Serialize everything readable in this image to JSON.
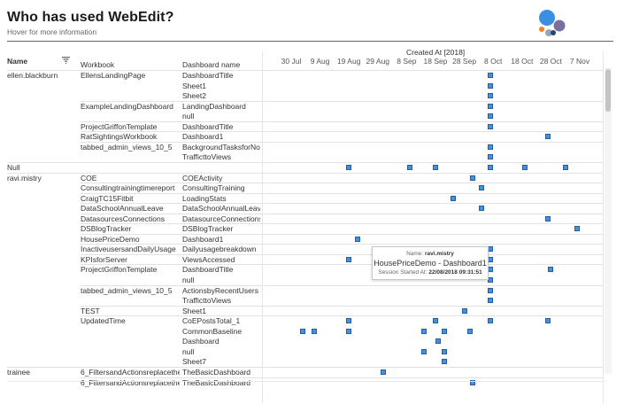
{
  "header": {
    "title": "Who has used WebEdit?",
    "subtitle": "Hover for more information"
  },
  "colors": {
    "mark_fill": "#4a8fd8",
    "mark_border": "#1e5fa8",
    "logo_blue": "#3a8fe0",
    "logo_orange": "#f58220",
    "logo_navy": "#1e4a7a",
    "logo_purple": "#7a6fa0",
    "logo_gray": "#9aa5b1"
  },
  "columns": {
    "name": "Name",
    "workbook": "Workbook",
    "dashboard": "Dashboard name",
    "axis_title": "Created At [2018]"
  },
  "axis_ticks": [
    "30 Jul",
    "9 Aug",
    "19 Aug",
    "29 Aug",
    "8 Sep",
    "18 Sep",
    "28 Sep",
    "8 Oct",
    "18 Oct",
    "28 Oct",
    "7 Nov"
  ],
  "rows": [
    {
      "name": "ellen.blackburn",
      "workbook": "EllensLandingPage",
      "dashboard": "DashboardTitle",
      "marks": [
        "2018-10-07"
      ]
    },
    {
      "name": "",
      "workbook": "",
      "dashboard": "Sheet1",
      "marks": [
        "2018-10-07"
      ]
    },
    {
      "name": "",
      "workbook": "",
      "dashboard": "Sheet2",
      "marks": [
        "2018-10-07"
      ]
    },
    {
      "name": "",
      "workbook": "ExampleLandingDashboard",
      "dashboard": "LandingDashboard",
      "marks": [
        "2018-10-07"
      ]
    },
    {
      "name": "",
      "workbook": "",
      "dashboard": "null",
      "marks": [
        "2018-10-07"
      ]
    },
    {
      "name": "",
      "workbook": "ProjectGriffonTemplate",
      "dashboard": "DashboardTitle",
      "marks": [
        "2018-10-07"
      ]
    },
    {
      "name": "",
      "workbook": "RatSightingsWorkbook",
      "dashboard": "Dashboard1",
      "marks": [
        "2018-10-27"
      ]
    },
    {
      "name": "",
      "workbook": "tabbed_admin_views_10_5",
      "dashboard": "BackgroundTasksforNonE..",
      "marks": [
        "2018-10-07"
      ]
    },
    {
      "name": "",
      "workbook": "",
      "dashboard": "TrafficttoViews",
      "marks": [
        "2018-10-07"
      ]
    },
    {
      "name": "Null",
      "workbook": "",
      "dashboard": "",
      "marks": [
        "2018-08-19",
        "2018-09-09",
        "2018-09-18",
        "2018-10-07",
        "2018-10-19",
        "2018-11-02"
      ]
    },
    {
      "name": "ravi.mistry",
      "workbook": "COE",
      "dashboard": "COEActivity",
      "marks": [
        "2018-10-01"
      ]
    },
    {
      "name": "",
      "workbook": "Consultingtrainingtimereport",
      "dashboard": "ConsultingTraining",
      "marks": [
        "2018-10-04"
      ]
    },
    {
      "name": "",
      "workbook": "CraigTC15Fitbit",
      "dashboard": "LoadingStats",
      "marks": [
        "2018-09-24"
      ]
    },
    {
      "name": "",
      "workbook": "DataSchoolAnnualLeave",
      "dashboard": "DataSchoolAnnualLeave",
      "marks": [
        "2018-10-04"
      ]
    },
    {
      "name": "",
      "workbook": "DatasourcesConnections",
      "dashboard": "DatasourceConnections",
      "marks": [
        "2018-10-27"
      ]
    },
    {
      "name": "",
      "workbook": "DSBlogTracker",
      "dashboard": "DSBlogTracker",
      "marks": [
        "2018-11-06"
      ]
    },
    {
      "name": "",
      "workbook": "HousePriceDemo",
      "dashboard": "Dashboard1",
      "marks": [
        "2018-08-22"
      ]
    },
    {
      "name": "",
      "workbook": "InactiveusersandDailyUsage",
      "dashboard": "Dailyusagebreakdown",
      "marks": [
        "2018-10-07"
      ]
    },
    {
      "name": "",
      "workbook": "KPIsforServer",
      "dashboard": "ViewsAccessed",
      "marks": [
        "2018-08-19",
        "2018-10-07"
      ]
    },
    {
      "name": "",
      "workbook": "ProjectGriffonTemplate",
      "dashboard": "DashboardTitle",
      "marks": [
        "2018-10-07",
        "2018-10-28"
      ]
    },
    {
      "name": "",
      "workbook": "",
      "dashboard": "null",
      "marks": [
        "2018-10-07"
      ]
    },
    {
      "name": "",
      "workbook": "tabbed_admin_views_10_5",
      "dashboard": "ActionsbyRecentUsers",
      "marks": [
        "2018-10-07"
      ]
    },
    {
      "name": "",
      "workbook": "",
      "dashboard": "TrafficttoViews",
      "marks": [
        "2018-10-07"
      ]
    },
    {
      "name": "",
      "workbook": "TEST",
      "dashboard": "Sheet1",
      "marks": [
        "2018-09-28"
      ]
    },
    {
      "name": "",
      "workbook": "UpdatedTime",
      "dashboard": "CoEPostsTotal_1",
      "marks": [
        "2018-08-19",
        "2018-09-18",
        "2018-10-07",
        "2018-10-27"
      ]
    },
    {
      "name": "",
      "workbook": "",
      "dashboard": "CommonBaseline",
      "marks": [
        "2018-08-03",
        "2018-08-07",
        "2018-08-19",
        "2018-09-14",
        "2018-09-21",
        "2018-09-30"
      ]
    },
    {
      "name": "",
      "workbook": "",
      "dashboard": "Dashboard",
      "marks": [
        "2018-09-19"
      ]
    },
    {
      "name": "",
      "workbook": "",
      "dashboard": "null",
      "marks": [
        "2018-09-14",
        "2018-09-21"
      ]
    },
    {
      "name": "",
      "workbook": "",
      "dashboard": "Sheet7",
      "marks": [
        "2018-09-21"
      ]
    },
    {
      "name": "trainee",
      "workbook": "6_FiltersandActionsreplacetheM..",
      "dashboard": "TheBasicDashboard",
      "marks": [
        "2018-08-31"
      ]
    },
    {
      "name": "",
      "workbook": "6_FiltersandActionsreplacetheM..",
      "dashboard": "TheBasicDashboard",
      "marks": [
        "2018-10-01"
      ]
    }
  ],
  "tooltip": {
    "name_label": "Name:",
    "name_value": "ravi.mistry",
    "title": "HousePriceDemo - Dashboard1",
    "session_label": "Session Started At:",
    "session_value": "22/08/2018 09:31:51"
  }
}
